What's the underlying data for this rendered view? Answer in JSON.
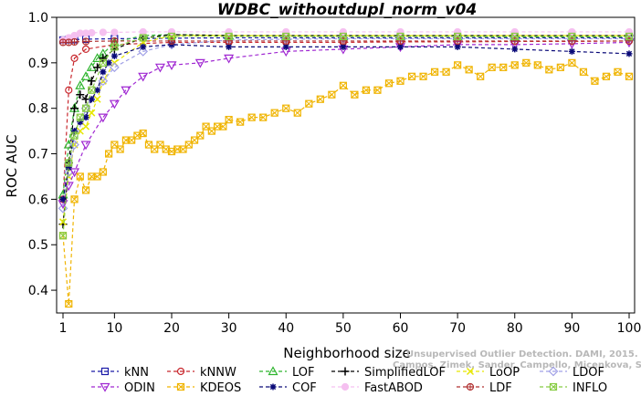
{
  "chart_data": {
    "type": "line",
    "title": "WDBC_withoutdupl_norm_v04",
    "xlabel": "Neighborhood size",
    "ylabel": "ROC AUC",
    "xlim": [
      0,
      100
    ],
    "ylim": [
      0.35,
      1.0
    ],
    "xticks": [
      "1",
      "10",
      "20",
      "30",
      "40",
      "50",
      "60",
      "70",
      "80",
      "90",
      "100"
    ],
    "yticks": [
      "0.4",
      "0.5",
      "0.6",
      "0.7",
      "0.8",
      "0.9",
      "1.0"
    ],
    "grid": false,
    "legend_position": "bottom",
    "series": [
      {
        "name": "kNN",
        "color": "#1a1aa8",
        "marker": "square",
        "x": [
          1,
          2,
          3,
          5,
          10,
          20,
          30,
          40,
          50,
          60,
          70,
          80,
          90,
          100
        ],
        "y": [
          0.95,
          0.951,
          0.951,
          0.952,
          0.953,
          0.954,
          0.955,
          0.955,
          0.955,
          0.955,
          0.955,
          0.955,
          0.955,
          0.955
        ]
      },
      {
        "name": "kNNW",
        "color": "#c8282e",
        "marker": "circle",
        "x": [
          1,
          2,
          3,
          5,
          10,
          20,
          30,
          40,
          50,
          60,
          70,
          80,
          90,
          100
        ],
        "y": [
          0.6,
          0.84,
          0.91,
          0.93,
          0.94,
          0.945,
          0.945,
          0.945,
          0.945,
          0.946,
          0.946,
          0.947,
          0.947,
          0.948
        ]
      },
      {
        "name": "LOF",
        "color": "#2fb52f",
        "marker": "triangle",
        "x": [
          1,
          2,
          3,
          4,
          5,
          6,
          7,
          8,
          10,
          15,
          20,
          30,
          40,
          50,
          60,
          70,
          80,
          90,
          100
        ],
        "y": [
          0.61,
          0.72,
          0.8,
          0.85,
          0.87,
          0.89,
          0.91,
          0.92,
          0.945,
          0.96,
          0.962,
          0.96,
          0.958,
          0.958,
          0.958,
          0.958,
          0.957,
          0.957,
          0.957
        ]
      },
      {
        "name": "SimplifiedLOF",
        "color": "#000000",
        "marker": "plus",
        "x": [
          1,
          2,
          3,
          4,
          5,
          6,
          7,
          8,
          10,
          15,
          20,
          30,
          40,
          50,
          60,
          70,
          80,
          90,
          100
        ],
        "y": [
          0.545,
          0.68,
          0.8,
          0.83,
          0.82,
          0.86,
          0.89,
          0.91,
          0.93,
          0.955,
          0.962,
          0.96,
          0.96,
          0.96,
          0.96,
          0.96,
          0.96,
          0.96,
          0.96
        ]
      },
      {
        "name": "LoOP",
        "color": "#e6e600",
        "marker": "cross",
        "x": [
          1,
          2,
          3,
          4,
          5,
          6,
          7,
          8,
          10,
          15,
          20,
          30,
          40,
          50,
          60,
          70,
          80,
          90,
          100
        ],
        "y": [
          0.55,
          0.65,
          0.72,
          0.75,
          0.76,
          0.79,
          0.82,
          0.86,
          0.9,
          0.945,
          0.96,
          0.96,
          0.96,
          0.96,
          0.96,
          0.96,
          0.96,
          0.96,
          0.96
        ]
      },
      {
        "name": "LDOF",
        "color": "#a0a0e6",
        "marker": "diamond",
        "x": [
          1,
          2,
          3,
          5,
          8,
          10,
          15,
          20,
          30,
          40,
          50,
          60,
          70,
          80,
          90,
          100
        ],
        "y": [
          0.58,
          0.66,
          0.72,
          0.8,
          0.86,
          0.89,
          0.925,
          0.94,
          0.95,
          0.952,
          0.953,
          0.953,
          0.953,
          0.953,
          0.953,
          0.953
        ]
      },
      {
        "name": "ODIN",
        "color": "#a028d2",
        "marker": "triangle-down",
        "x": [
          1,
          2,
          3,
          5,
          8,
          10,
          12,
          15,
          18,
          20,
          25,
          30,
          40,
          50,
          60,
          70,
          80,
          90,
          100
        ],
        "y": [
          0.59,
          0.63,
          0.66,
          0.72,
          0.78,
          0.81,
          0.84,
          0.87,
          0.89,
          0.895,
          0.9,
          0.91,
          0.925,
          0.93,
          0.935,
          0.94,
          0.94,
          0.942,
          0.945
        ]
      },
      {
        "name": "KDEOS",
        "color": "#f0b400",
        "marker": "square-x",
        "x": [
          1,
          2,
          3,
          4,
          5,
          6,
          7,
          8,
          9,
          10,
          11,
          12,
          13,
          14,
          15,
          16,
          17,
          18,
          19,
          20,
          21,
          22,
          23,
          24,
          25,
          26,
          27,
          28,
          29,
          30,
          32,
          34,
          36,
          38,
          40,
          42,
          44,
          46,
          48,
          50,
          52,
          54,
          56,
          58,
          60,
          62,
          64,
          66,
          68,
          70,
          72,
          74,
          76,
          78,
          80,
          82,
          84,
          86,
          88,
          90,
          92,
          94,
          96,
          98,
          100
        ],
        "y": [
          0.52,
          0.37,
          0.6,
          0.65,
          0.62,
          0.65,
          0.65,
          0.66,
          0.7,
          0.72,
          0.71,
          0.73,
          0.73,
          0.74,
          0.745,
          0.72,
          0.71,
          0.72,
          0.71,
          0.705,
          0.71,
          0.71,
          0.72,
          0.73,
          0.74,
          0.76,
          0.75,
          0.76,
          0.76,
          0.775,
          0.77,
          0.78,
          0.78,
          0.79,
          0.8,
          0.79,
          0.81,
          0.82,
          0.83,
          0.85,
          0.83,
          0.84,
          0.84,
          0.855,
          0.86,
          0.87,
          0.87,
          0.88,
          0.88,
          0.895,
          0.885,
          0.87,
          0.89,
          0.89,
          0.895,
          0.9,
          0.895,
          0.885,
          0.89,
          0.9,
          0.88,
          0.86,
          0.87,
          0.88,
          0.87
        ]
      },
      {
        "name": "COF",
        "color": "#0a0a78",
        "marker": "asterisk",
        "x": [
          1,
          2,
          3,
          4,
          5,
          6,
          7,
          8,
          9,
          10,
          15,
          20,
          30,
          40,
          50,
          60,
          70,
          80,
          90,
          100
        ],
        "y": [
          0.6,
          0.67,
          0.75,
          0.77,
          0.78,
          0.82,
          0.84,
          0.88,
          0.9,
          0.915,
          0.935,
          0.94,
          0.935,
          0.935,
          0.935,
          0.935,
          0.935,
          0.93,
          0.925,
          0.92
        ]
      },
      {
        "name": "FastABOD",
        "color": "#f5c0f0",
        "marker": "circle-filled",
        "x": [
          1,
          2,
          3,
          4,
          5,
          6,
          8,
          10,
          15,
          20,
          30,
          40,
          50,
          60,
          70,
          80,
          90,
          100
        ],
        "y": [
          0.95,
          0.955,
          0.96,
          0.965,
          0.965,
          0.966,
          0.967,
          0.967,
          0.968,
          0.968,
          0.968,
          0.968,
          0.968,
          0.968,
          0.968,
          0.968,
          0.968,
          0.968
        ]
      },
      {
        "name": "LDF",
        "color": "#b03030",
        "marker": "circle-plus",
        "x": [
          1,
          2,
          3,
          5,
          10,
          20,
          30,
          40,
          50,
          60,
          70,
          80,
          90,
          100
        ],
        "y": [
          0.945,
          0.945,
          0.946,
          0.947,
          0.948,
          0.948,
          0.948,
          0.948,
          0.948,
          0.948,
          0.948,
          0.948,
          0.948,
          0.948
        ]
      },
      {
        "name": "INFLO",
        "color": "#88cc44",
        "marker": "square-x",
        "x": [
          1,
          2,
          3,
          4,
          5,
          6,
          8,
          10,
          15,
          20,
          30,
          40,
          50,
          60,
          70,
          80,
          90,
          100
        ],
        "y": [
          0.52,
          0.68,
          0.74,
          0.78,
          0.8,
          0.84,
          0.9,
          0.935,
          0.955,
          0.958,
          0.958,
          0.958,
          0.958,
          0.958,
          0.958,
          0.958,
          0.958,
          0.958
        ]
      }
    ],
    "legend_order": [
      "kNN",
      "kNNW",
      "LOF",
      "SimplifiedLOF",
      "LoOP",
      "LDOF",
      "ODIN",
      "KDEOS",
      "COF",
      "FastABOD",
      "LDF",
      "INFLO"
    ]
  },
  "watermark": {
    "line1": "Unsupervised Outlier Detection. DAMI, 2015.",
    "line2": "Campos, Zimek, Sander, Campello, Micenkova, Schubert, Assent, Houle"
  }
}
